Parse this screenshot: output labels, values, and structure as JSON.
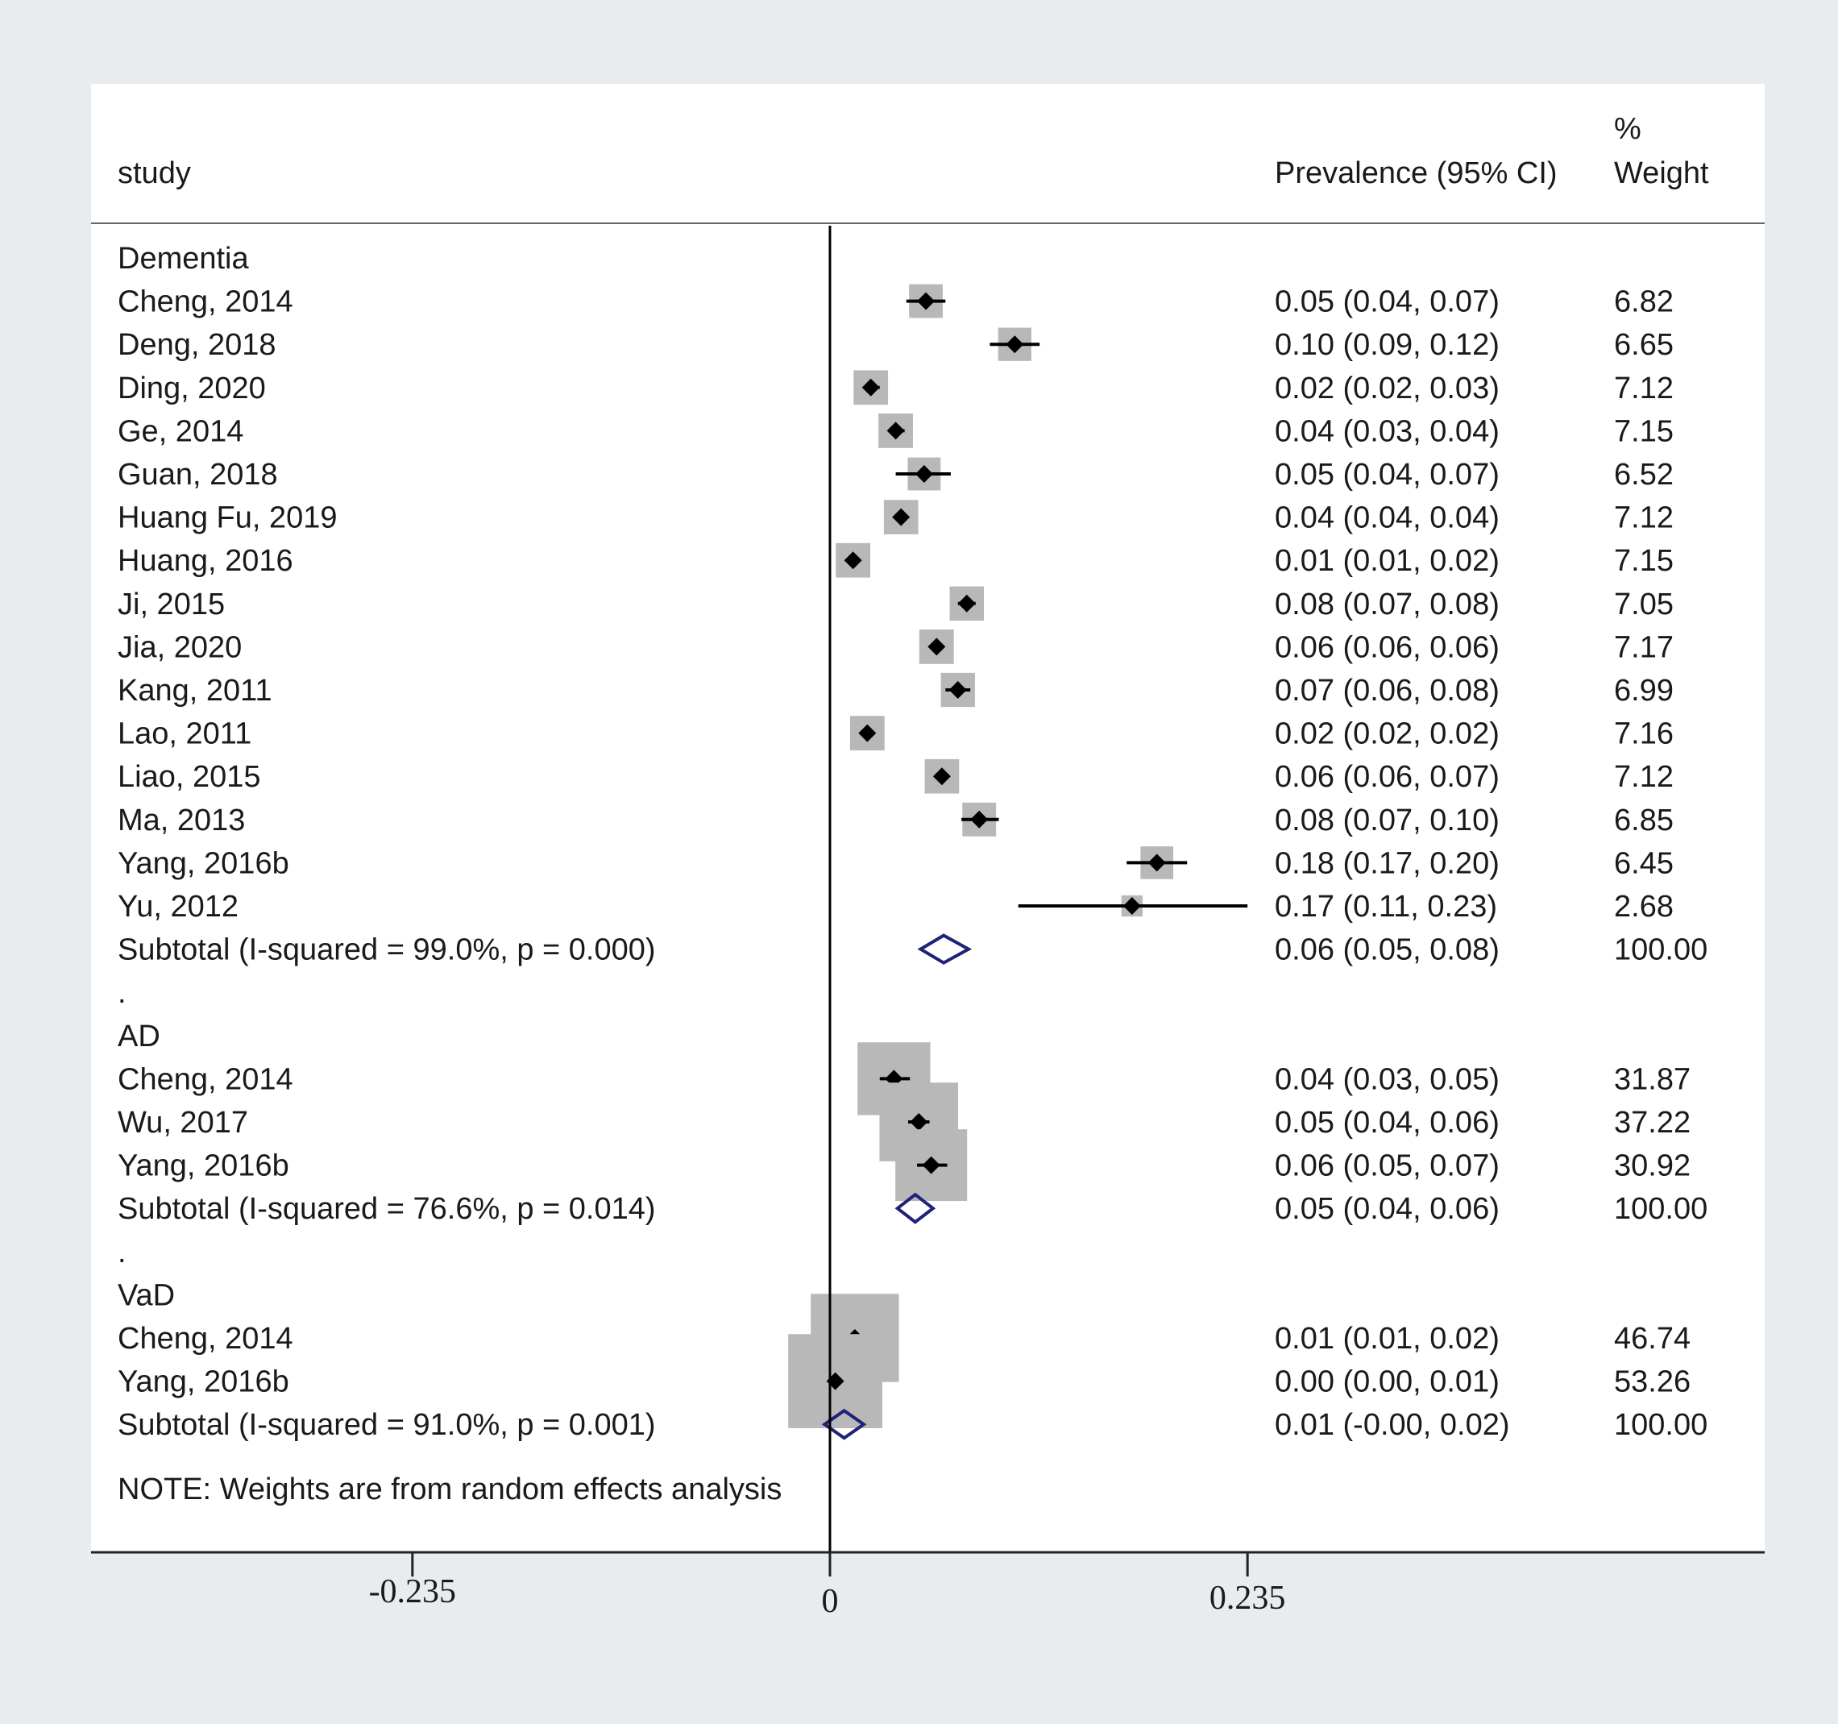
{
  "chart_data": {
    "type": "forest",
    "header": {
      "study": "study",
      "estimate": "Prevalence (95% CI)",
      "weight_pct": "%",
      "weight": "Weight"
    },
    "x_axis": {
      "ticks": [
        -0.235,
        0,
        0.235
      ],
      "tick_labels": [
        "-0.235",
        "0",
        "0.235"
      ],
      "reference_line": 0
    },
    "groups": [
      {
        "name": "Dementia",
        "studies": [
          {
            "label": "Cheng, 2014",
            "est": 0.054,
            "lo": 0.043,
            "hi": 0.065,
            "ci_text": "0.05 (0.04, 0.07)",
            "weight": "6.82"
          },
          {
            "label": "Deng, 2018",
            "est": 0.104,
            "lo": 0.09,
            "hi": 0.118,
            "ci_text": "0.10 (0.09, 0.12)",
            "weight": "6.65"
          },
          {
            "label": "Ding, 2020",
            "est": 0.023,
            "lo": 0.019,
            "hi": 0.028,
            "ci_text": "0.02 (0.02, 0.03)",
            "weight": "7.12"
          },
          {
            "label": "Ge, 2014",
            "est": 0.037,
            "lo": 0.033,
            "hi": 0.042,
            "ci_text": "0.04 (0.03, 0.04)",
            "weight": "7.15"
          },
          {
            "label": "Guan, 2018",
            "est": 0.053,
            "lo": 0.037,
            "hi": 0.068,
            "ci_text": "0.05 (0.04, 0.07)",
            "weight": "6.52"
          },
          {
            "label": "Huang Fu, 2019",
            "est": 0.04,
            "lo": 0.036,
            "hi": 0.044,
            "ci_text": "0.04 (0.04, 0.04)",
            "weight": "7.12"
          },
          {
            "label": "Huang, 2016",
            "est": 0.013,
            "lo": 0.01,
            "hi": 0.016,
            "ci_text": "0.01 (0.01, 0.02)",
            "weight": "7.15"
          },
          {
            "label": "Ji, 2015",
            "est": 0.077,
            "lo": 0.072,
            "hi": 0.082,
            "ci_text": "0.08 (0.07, 0.08)",
            "weight": "7.05"
          },
          {
            "label": "Jia, 2020",
            "est": 0.06,
            "lo": 0.057,
            "hi": 0.063,
            "ci_text": "0.06 (0.06, 0.06)",
            "weight": "7.17"
          },
          {
            "label": "Kang, 2011",
            "est": 0.072,
            "lo": 0.065,
            "hi": 0.079,
            "ci_text": "0.07 (0.06, 0.08)",
            "weight": "6.99"
          },
          {
            "label": "Lao, 2011",
            "est": 0.021,
            "lo": 0.018,
            "hi": 0.024,
            "ci_text": "0.02 (0.02, 0.02)",
            "weight": "7.16"
          },
          {
            "label": "Liao, 2015",
            "est": 0.063,
            "lo": 0.059,
            "hi": 0.067,
            "ci_text": "0.06 (0.06, 0.07)",
            "weight": "7.12"
          },
          {
            "label": "Ma, 2013",
            "est": 0.084,
            "lo": 0.074,
            "hi": 0.095,
            "ci_text": "0.08 (0.07, 0.10)",
            "weight": "6.85"
          },
          {
            "label": "Yang, 2016b",
            "est": 0.184,
            "lo": 0.167,
            "hi": 0.201,
            "ci_text": "0.18 (0.17, 0.20)",
            "weight": "6.45"
          },
          {
            "label": "Yu, 2012",
            "est": 0.17,
            "lo": 0.106,
            "hi": 0.235,
            "ci_text": "0.17 (0.11, 0.23)",
            "weight": "2.68"
          }
        ],
        "subtotal": {
          "label": "Subtotal  (I-squared = 99.0%, p = 0.000)",
          "est": 0.064,
          "lo": 0.051,
          "hi": 0.078,
          "ci_text": "0.06 (0.05, 0.08)",
          "weight": "100.00"
        }
      },
      {
        "name": "AD",
        "studies": [
          {
            "label": "Cheng, 2014",
            "est": 0.036,
            "lo": 0.028,
            "hi": 0.045,
            "ci_text": "0.04 (0.03, 0.05)",
            "weight": "31.87"
          },
          {
            "label": "Wu, 2017",
            "est": 0.05,
            "lo": 0.044,
            "hi": 0.056,
            "ci_text": "0.05 (0.04, 0.06)",
            "weight": "37.22"
          },
          {
            "label": "Yang, 2016b",
            "est": 0.057,
            "lo": 0.049,
            "hi": 0.066,
            "ci_text": "0.06 (0.05, 0.07)",
            "weight": "30.92"
          }
        ],
        "subtotal": {
          "label": "Subtotal  (I-squared = 76.6%, p = 0.014)",
          "est": 0.048,
          "lo": 0.038,
          "hi": 0.058,
          "ci_text": "0.05 (0.04, 0.06)",
          "weight": "100.00"
        }
      },
      {
        "name": "VaD",
        "studies": [
          {
            "label": "Cheng, 2014",
            "est": 0.014,
            "lo": 0.01,
            "hi": 0.018,
            "ci_text": "0.01 (0.01, 0.02)",
            "weight": "46.74"
          },
          {
            "label": "Yang, 2016b",
            "est": 0.003,
            "lo": 0.001,
            "hi": 0.005,
            "ci_text": "0.00 (0.00, 0.01)",
            "weight": "53.26"
          }
        ],
        "subtotal": {
          "label": "Subtotal  (I-squared = 91.0%, p = 0.001)",
          "est": 0.008,
          "lo": -0.003,
          "hi": 0.019,
          "ci_text": "0.01 (-0.00, 0.02)",
          "weight": "100.00"
        }
      }
    ],
    "separator": ".",
    "note": "NOTE: Weights are from random effects analysis",
    "colors": {
      "outer_background": "#e9ecee",
      "panel": "#ffffff",
      "weight_box": "#b8b8b8",
      "marker": "#000000",
      "subtotal_diamond": "#1f2277"
    }
  }
}
